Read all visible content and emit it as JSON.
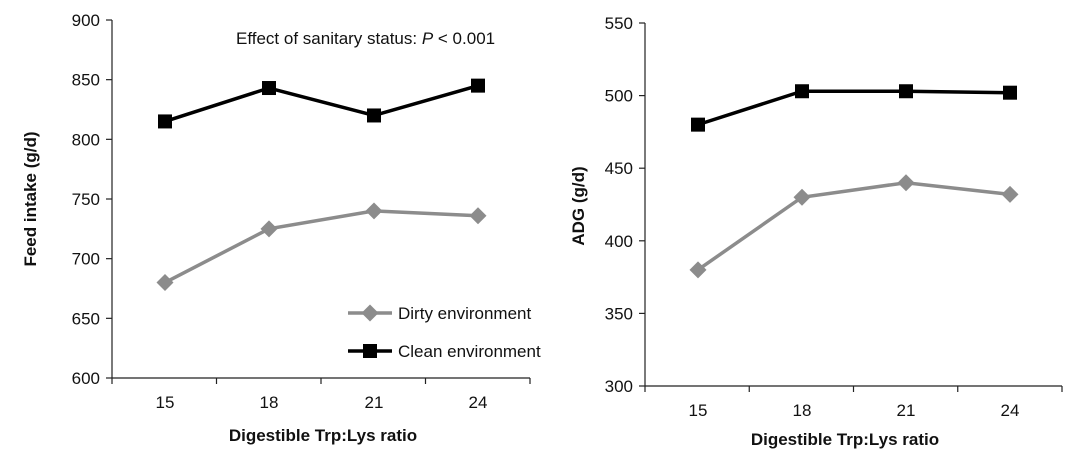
{
  "chart_data": [
    {
      "type": "line",
      "xlabel": "Digestible Trp:Lys ratio",
      "ylabel": "Feed intake (g/d)",
      "categories": [
        "15",
        "18",
        "21",
        "24"
      ],
      "ylim": [
        600,
        900
      ],
      "yticks": [
        "600",
        "650",
        "700",
        "750",
        "800",
        "850",
        "900"
      ],
      "annotation": {
        "prefix": "Effect of sanitary status: ",
        "italic": "P",
        "suffix": " < 0.001"
      },
      "legend": {
        "placement": "bottom-right",
        "items": [
          "Dirty environment",
          "Clean environment"
        ]
      },
      "series": [
        {
          "name": "Dirty environment",
          "color": "#8c8c8c",
          "marker": "diamond",
          "values": [
            680,
            725,
            740,
            736
          ]
        },
        {
          "name": "Clean environment",
          "color": "#000000",
          "marker": "square",
          "values": [
            815,
            843,
            820,
            845
          ]
        }
      ],
      "grid": false
    },
    {
      "type": "line",
      "xlabel": "Digestible Trp:Lys ratio",
      "ylabel": "ADG (g/d)",
      "categories": [
        "15",
        "18",
        "21",
        "24"
      ],
      "ylim": [
        300,
        550
      ],
      "yticks": [
        "300",
        "350",
        "400",
        "450",
        "500",
        "550"
      ],
      "series": [
        {
          "name": "Dirty environment",
          "color": "#8c8c8c",
          "marker": "diamond",
          "values": [
            380,
            430,
            440,
            432
          ]
        },
        {
          "name": "Clean environment",
          "color": "#000000",
          "marker": "square",
          "values": [
            480,
            503,
            503,
            502
          ]
        }
      ],
      "grid": false
    }
  ]
}
